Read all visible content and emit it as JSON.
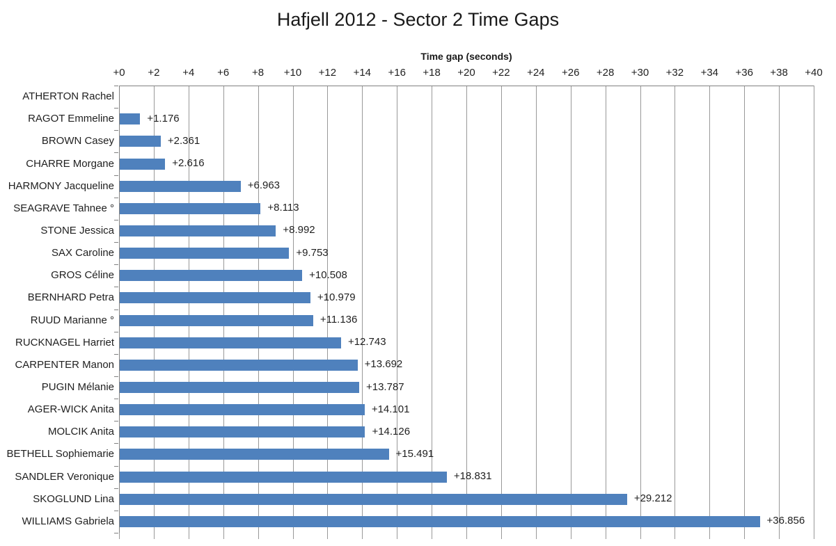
{
  "chart_data": {
    "type": "bar",
    "orientation": "horizontal",
    "title": "Hafjell 2012 - Sector 2 Time Gaps",
    "xlabel": "Time gap (seconds)",
    "xlim": [
      0,
      40
    ],
    "xticks": [
      0,
      2,
      4,
      6,
      8,
      10,
      12,
      14,
      16,
      18,
      20,
      22,
      24,
      26,
      28,
      30,
      32,
      34,
      36,
      38,
      40
    ],
    "xtick_labels": [
      "+0",
      "+2",
      "+4",
      "+6",
      "+8",
      "+10",
      "+12",
      "+14",
      "+16",
      "+18",
      "+20",
      "+22",
      "+24",
      "+26",
      "+28",
      "+30",
      "+32",
      "+34",
      "+36",
      "+38",
      "+40"
    ],
    "grid": true,
    "legend": false,
    "bar_color": "#4F81BD",
    "gridline_color": "#989898",
    "axis_color": "#808080",
    "categories": [
      "ATHERTON Rachel",
      "RAGOT Emmeline",
      "BROWN Casey",
      "CHARRE Morgane",
      "HARMONY Jacqueline",
      "SEAGRAVE Tahnee °",
      "STONE Jessica",
      "SAX Caroline",
      "GROS Céline",
      "BERNHARD Petra",
      "RUUD Marianne °",
      "RUCKNAGEL Harriet",
      "CARPENTER Manon",
      "PUGIN Mélanie",
      "AGER-WICK Anita",
      "MOLCIK Anita",
      "BETHELL Sophiemarie",
      "SANDLER Veronique",
      "SKOGLUND Lina",
      "WILLIAMS Gabriela"
    ],
    "values": [
      0,
      1.176,
      2.361,
      2.616,
      6.963,
      8.113,
      8.992,
      9.753,
      10.508,
      10.979,
      11.136,
      12.743,
      13.692,
      13.787,
      14.101,
      14.126,
      15.491,
      18.831,
      29.212,
      36.856
    ],
    "data_labels": [
      "",
      "+1.176",
      "+2.361",
      "+2.616",
      "+6.963",
      "+8.113",
      "+8.992",
      "+9.753",
      "+10.508",
      "+10.979",
      "+11.136",
      "+12.743",
      "+13.692",
      "+13.787",
      "+14.101",
      "+14.126",
      "+15.491",
      "+18.831",
      "+29.212",
      "+36.856"
    ]
  }
}
